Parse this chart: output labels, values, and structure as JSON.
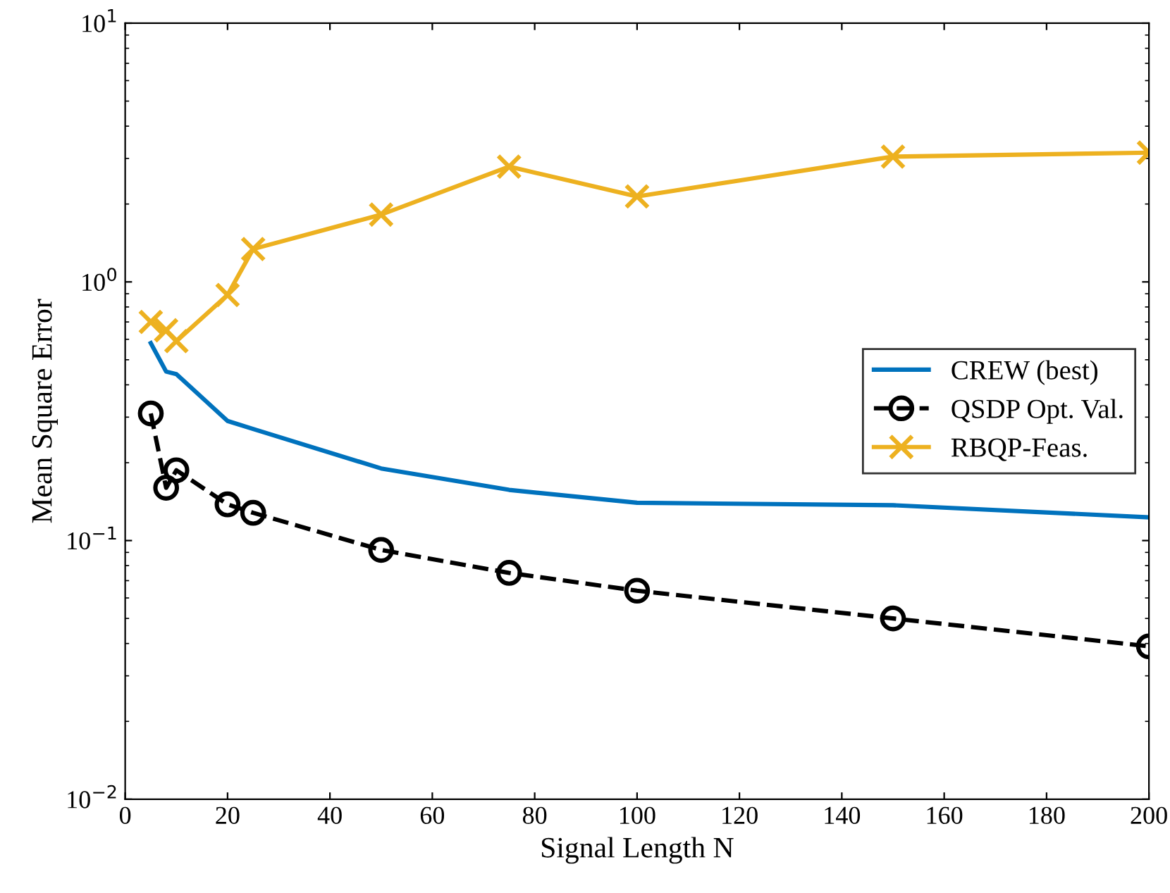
{
  "chart_data": {
    "type": "line",
    "xlabel": "Signal Length N",
    "ylabel": "Mean Square Error",
    "x": [
      5,
      8,
      10,
      20,
      25,
      50,
      75,
      100,
      150,
      200
    ],
    "series": [
      {
        "name": "CREW (best)",
        "color": "#0072bd",
        "marker": "none",
        "line_style": "solid",
        "values": [
          0.58,
          0.45,
          0.44,
          0.29,
          0.27,
          0.19,
          0.157,
          0.14,
          0.137,
          0.123
        ]
      },
      {
        "name": "QSDP Opt. Val.",
        "color": "#000000",
        "marker": "circle",
        "line_style": "dashed",
        "values": [
          0.31,
          0.16,
          0.187,
          0.138,
          0.128,
          0.092,
          0.075,
          0.064,
          0.05,
          0.039
        ]
      },
      {
        "name": "RBQP-Feas.",
        "color": "#edb120",
        "marker": "cross",
        "line_style": "solid",
        "values": [
          0.7,
          0.65,
          0.59,
          0.89,
          1.34,
          1.82,
          2.79,
          2.14,
          3.05,
          3.16
        ]
      }
    ],
    "log": "y",
    "xlim": [
      0,
      200
    ],
    "xticks": [
      0,
      20,
      40,
      60,
      80,
      100,
      120,
      140,
      160,
      180,
      200
    ],
    "ylim": [
      0.01,
      10
    ],
    "yticks": [
      {
        "value": 0.01,
        "label": "10$^{−2}$"
      },
      {
        "value": 0.1,
        "label": "10$^{−1}$"
      },
      {
        "value": 1,
        "label": "10$^{0}$"
      },
      {
        "value": 10,
        "label": "10$^{1}$"
      }
    ],
    "grid": false,
    "legend": "right"
  }
}
